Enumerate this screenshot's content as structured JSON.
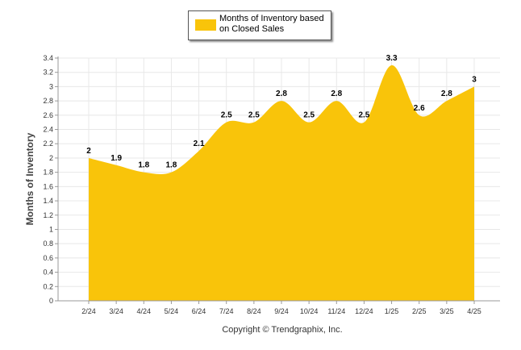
{
  "chart_data": {
    "type": "area",
    "categories": [
      "2/24",
      "3/24",
      "4/24",
      "5/24",
      "6/24",
      "7/24",
      "8/24",
      "9/24",
      "10/24",
      "11/24",
      "12/24",
      "1/25",
      "2/25",
      "3/25",
      "4/25"
    ],
    "series": [
      {
        "name": "Months of Inventory based on Closed Sales",
        "values": [
          2,
          1.9,
          1.8,
          1.8,
          2.1,
          2.5,
          2.5,
          2.8,
          2.5,
          2.8,
          2.5,
          3.3,
          2.6,
          2.8,
          3
        ],
        "data_labels": [
          "2",
          "1.9",
          "1.8",
          "1.8",
          "2.1",
          "2.5",
          "2.5",
          "2.8",
          "2.5",
          "2.8",
          "2.5",
          "3.3",
          "2.6",
          "2.8",
          "3"
        ],
        "color": "#F9C40A"
      }
    ],
    "ylabel": "Months of Inventory",
    "xlabel": "",
    "ylim": [
      0,
      3.4
    ],
    "y_ticks": [
      "0",
      "0.2",
      "0.4",
      "0.6",
      "0.8",
      "1",
      "1.2",
      "1.4",
      "1.6",
      "1.8",
      "2",
      "2.2",
      "2.4",
      "2.6",
      "2.8",
      "3",
      "3.2",
      "3.4"
    ],
    "grid": true,
    "legend_position": "top-center"
  },
  "legend_label": "Months of Inventory based on Closed Sales",
  "copyright": "Copyright © Trendgraphix, Inc.",
  "colors": {
    "area": "#F9C40A",
    "grid": "#E8E8E8",
    "axis": "#999999"
  }
}
